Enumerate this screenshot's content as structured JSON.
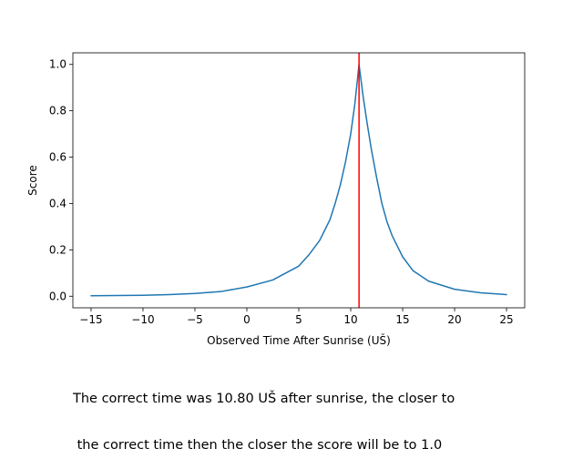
{
  "chart_data": {
    "type": "line",
    "title": "",
    "xlabel": "Observed Time After Sunrise (UŠ)",
    "ylabel": "Score",
    "xlim": [
      -16.75,
      26.75
    ],
    "ylim": [
      -0.05,
      1.05
    ],
    "x_ticks": [
      -15,
      -10,
      -5,
      0,
      5,
      10,
      15,
      20,
      25
    ],
    "x_tick_labels": [
      "−15",
      "−10",
      "−5",
      "0",
      "5",
      "10",
      "15",
      "20",
      "25"
    ],
    "y_ticks": [
      0.0,
      0.2,
      0.4,
      0.6,
      0.8,
      1.0
    ],
    "y_tick_labels": [
      "0.0",
      "0.2",
      "0.4",
      "0.6",
      "0.8",
      "1.0"
    ],
    "grid": false,
    "series": [
      {
        "color": "#1f77b4",
        "x": [
          -15,
          -12.5,
          -10,
          -7.5,
          -5,
          -2.5,
          0,
          2.5,
          5,
          6,
          7,
          8,
          8.5,
          9,
          9.5,
          10,
          10.4,
          10.8,
          11.2,
          11.6,
          12,
          12.5,
          13,
          13.5,
          14,
          15,
          16,
          17.5,
          20,
          22.5,
          25
        ],
        "y": [
          0.002,
          0.003,
          0.004,
          0.007,
          0.012,
          0.02,
          0.04,
          0.07,
          0.13,
          0.18,
          0.24,
          0.33,
          0.4,
          0.48,
          0.58,
          0.7,
          0.83,
          1.0,
          0.86,
          0.74,
          0.63,
          0.51,
          0.4,
          0.32,
          0.26,
          0.17,
          0.11,
          0.065,
          0.03,
          0.015,
          0.007
        ]
      }
    ],
    "vertical_line": {
      "x": 10.8,
      "color": "#ff0000"
    }
  },
  "caption": {
    "line1": "The correct time was 10.80 UŠ after sunrise, the closer to",
    "line2": " the correct time then the closer the score will be to 1.0"
  }
}
